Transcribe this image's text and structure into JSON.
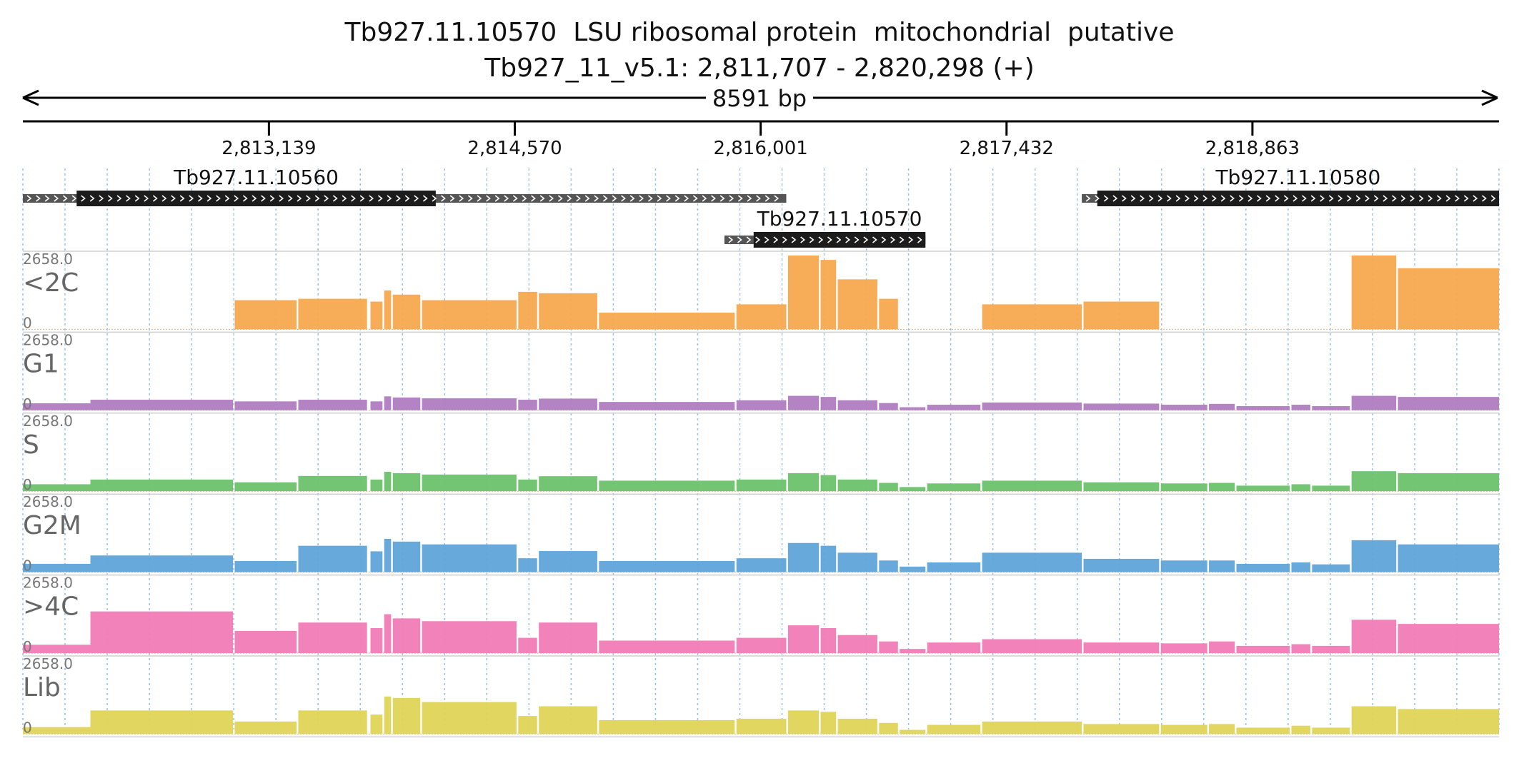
{
  "title": {
    "line1": "Tb927.11.10570  LSU ribosomal protein  mitochondrial  putative",
    "line2": "Tb927_11_v5.1: 2,811,707 - 2,820,298 (+)"
  },
  "chart_data": {
    "type": "area",
    "x_range": [
      2811707,
      2820298
    ],
    "span_label": "8591 bp",
    "x_ticks": [
      "2,813,139",
      "2,814,570",
      "2,816,001",
      "2,817,432",
      "2,818,863"
    ],
    "x_tick_values": [
      2813139,
      2814570,
      2816001,
      2817432,
      2818863
    ],
    "grid": true,
    "genes": [
      {
        "name": "Tb927.11.10560",
        "utr_start": 2811707,
        "cds_start": 2812020,
        "cds_end": 2814110,
        "utr_end": 2816150,
        "row": 0
      },
      {
        "name": "Tb927.11.10570",
        "utr_start": 2815790,
        "cds_start": 2815960,
        "cds_end": 2816960,
        "utr_end": 2816960,
        "row": 1
      },
      {
        "name": "Tb927.11.10580",
        "utr_start": 2817870,
        "cds_start": 2817960,
        "cds_end": 2820298,
        "utr_end": 2820298,
        "row": 0
      }
    ],
    "ylim": [
      0,
      2658.0
    ],
    "y_max_label": "2658.0",
    "y_min_label": "0",
    "exon_segments": [
      [
        2811707,
        2812100
      ],
      [
        2812100,
        2812930
      ],
      [
        2812940,
        2813300
      ],
      [
        2813310,
        2813710
      ],
      [
        2813730,
        2813800
      ],
      [
        2813810,
        2813850
      ],
      [
        2813860,
        2814020
      ],
      [
        2814030,
        2814580
      ],
      [
        2814590,
        2814700
      ],
      [
        2814710,
        2815050
      ],
      [
        2815060,
        2815850
      ],
      [
        2815860,
        2816150
      ],
      [
        2816160,
        2816340
      ],
      [
        2816350,
        2816440
      ],
      [
        2816450,
        2816680
      ],
      [
        2816690,
        2816800
      ],
      [
        2816810,
        2816960
      ],
      [
        2816970,
        2817280
      ],
      [
        2817290,
        2817870
      ],
      [
        2817880,
        2818320
      ],
      [
        2818330,
        2818600
      ],
      [
        2818610,
        2818760
      ],
      [
        2818770,
        2819080
      ],
      [
        2819090,
        2819200
      ],
      [
        2819210,
        2819430
      ],
      [
        2819440,
        2819700
      ],
      [
        2819710,
        2820298
      ]
    ],
    "series": [
      {
        "name": "<2C",
        "color": "#f7a84f",
        "values": [
          0,
          0,
          1050,
          1100,
          1000,
          1400,
          1250,
          1050,
          1350,
          1300,
          600,
          900,
          2658,
          2500,
          1800,
          1100,
          0,
          0,
          900,
          1000,
          0,
          0,
          0,
          0,
          0,
          2658,
          2200
        ]
      },
      {
        "name": "G1",
        "color": "#b07cc0",
        "values": [
          250,
          380,
          320,
          380,
          320,
          500,
          460,
          430,
          380,
          420,
          300,
          360,
          520,
          480,
          360,
          260,
          110,
          200,
          280,
          240,
          200,
          230,
          150,
          200,
          150,
          520,
          480
        ]
      },
      {
        "name": "S",
        "color": "#6cc26c",
        "values": [
          250,
          420,
          320,
          550,
          420,
          700,
          650,
          600,
          420,
          540,
          380,
          420,
          650,
          580,
          420,
          300,
          150,
          280,
          380,
          320,
          280,
          300,
          200,
          250,
          200,
          720,
          650
        ]
      },
      {
        "name": "G2M",
        "color": "#5fa4d8",
        "values": [
          300,
          600,
          400,
          950,
          750,
          1200,
          1100,
          1000,
          500,
          760,
          400,
          500,
          1050,
          950,
          700,
          420,
          200,
          350,
          700,
          480,
          420,
          420,
          300,
          350,
          280,
          1150,
          1000
        ]
      },
      {
        "name": ">4C",
        "color": "#f07cb6",
        "values": [
          300,
          1500,
          800,
          1100,
          900,
          1400,
          1250,
          1150,
          550,
          1100,
          450,
          550,
          1000,
          900,
          650,
          420,
          150,
          380,
          500,
          380,
          350,
          420,
          260,
          320,
          260,
          1200,
          1050
        ]
      },
      {
        "name": "Lib",
        "color": "#dfd457",
        "values": [
          250,
          850,
          450,
          850,
          700,
          1350,
          1300,
          1150,
          650,
          1000,
          500,
          550,
          850,
          800,
          550,
          400,
          150,
          330,
          450,
          360,
          330,
          360,
          230,
          300,
          230,
          1000,
          900
        ]
      }
    ]
  }
}
